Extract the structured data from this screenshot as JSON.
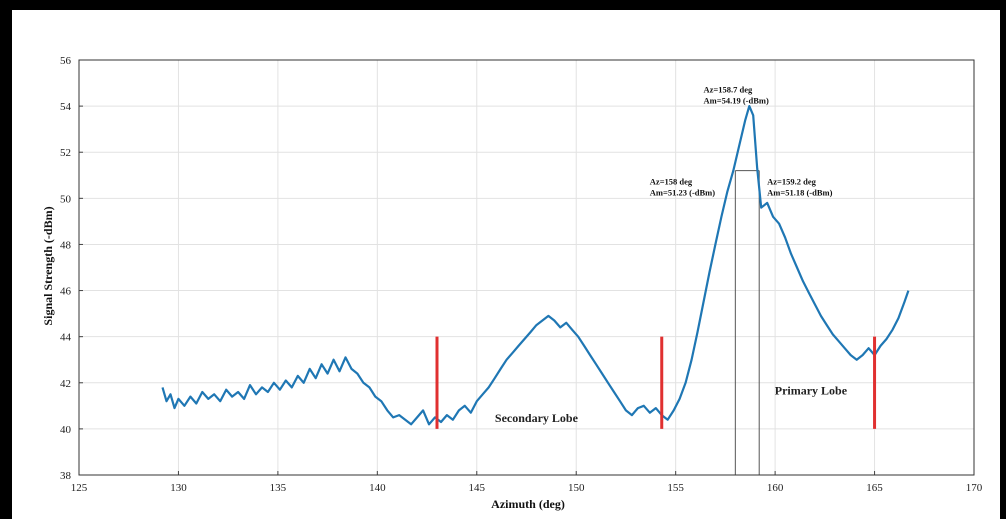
{
  "chart_data": {
    "type": "line",
    "title": "",
    "xlabel": "Azimuth (deg)",
    "ylabel": "Signal Strength (-dBm)",
    "xlim": [
      125,
      170
    ],
    "ylim": [
      38,
      56
    ],
    "x_ticks": [
      "125",
      "130",
      "135",
      "140",
      "145",
      "150",
      "155",
      "160",
      "165",
      "170"
    ],
    "y_ticks": [
      "38",
      "40",
      "42",
      "44",
      "46",
      "48",
      "50",
      "52",
      "54",
      "56"
    ],
    "grid": true,
    "series": [
      {
        "name": "",
        "color": "#1f77b4",
        "x": [
          129.2,
          129.4,
          129.6,
          129.8,
          130.0,
          130.3,
          130.6,
          130.9,
          131.2,
          131.5,
          131.8,
          132.1,
          132.4,
          132.7,
          133.0,
          133.3,
          133.6,
          133.9,
          134.2,
          134.5,
          134.8,
          135.1,
          135.4,
          135.7,
          136.0,
          136.3,
          136.6,
          136.9,
          137.2,
          137.5,
          137.8,
          138.1,
          138.4,
          138.7,
          139.0,
          139.3,
          139.6,
          139.9,
          140.2,
          140.5,
          140.8,
          141.1,
          141.4,
          141.7,
          142.0,
          142.3,
          142.6,
          142.9,
          143.2,
          143.5,
          143.8,
          144.1,
          144.4,
          144.7,
          145.0,
          145.3,
          145.6,
          145.9,
          146.2,
          146.5,
          146.8,
          147.1,
          147.4,
          147.7,
          148.0,
          148.3,
          148.6,
          148.9,
          149.2,
          149.5,
          149.8,
          150.1,
          150.4,
          150.7,
          151.0,
          151.3,
          151.6,
          151.9,
          152.2,
          152.5,
          152.8,
          153.1,
          153.4,
          153.7,
          154.0,
          154.3,
          154.6,
          154.9,
          155.2,
          155.5,
          155.8,
          156.1,
          156.4,
          156.7,
          157.0,
          157.3,
          157.6,
          157.9,
          158.2,
          158.5,
          158.7,
          158.9,
          159.1,
          159.3,
          159.6,
          159.9,
          160.2,
          160.5,
          160.8,
          161.1,
          161.4,
          161.7,
          162.0,
          162.3,
          162.6,
          162.9,
          163.2,
          163.5,
          163.8,
          164.1,
          164.4,
          164.7,
          165.0,
          165.3,
          165.6,
          165.9,
          166.2,
          166.5,
          166.7
        ],
        "y": [
          41.8,
          41.2,
          41.5,
          40.9,
          41.3,
          41.0,
          41.4,
          41.1,
          41.6,
          41.3,
          41.5,
          41.2,
          41.7,
          41.4,
          41.6,
          41.3,
          41.9,
          41.5,
          41.8,
          41.6,
          42.0,
          41.7,
          42.1,
          41.8,
          42.3,
          42.0,
          42.6,
          42.2,
          42.8,
          42.4,
          43.0,
          42.5,
          43.1,
          42.6,
          42.4,
          42.0,
          41.8,
          41.4,
          41.2,
          40.8,
          40.5,
          40.6,
          40.4,
          40.2,
          40.5,
          40.8,
          40.2,
          40.5,
          40.3,
          40.6,
          40.4,
          40.8,
          41.0,
          40.7,
          41.2,
          41.5,
          41.8,
          42.2,
          42.6,
          43.0,
          43.3,
          43.6,
          43.9,
          44.2,
          44.5,
          44.7,
          44.9,
          44.7,
          44.4,
          44.6,
          44.3,
          44.0,
          43.6,
          43.2,
          42.8,
          42.4,
          42.0,
          41.6,
          41.2,
          40.8,
          40.6,
          40.9,
          41.0,
          40.7,
          40.9,
          40.6,
          40.4,
          40.8,
          41.3,
          42.0,
          43.0,
          44.2,
          45.5,
          46.8,
          48.0,
          49.2,
          50.3,
          51.2,
          52.3,
          53.4,
          54.0,
          53.6,
          51.3,
          49.6,
          49.8,
          49.2,
          48.9,
          48.3,
          47.6,
          47.0,
          46.4,
          45.9,
          45.4,
          44.9,
          44.5,
          44.1,
          43.8,
          43.5,
          43.2,
          43.0,
          43.2,
          43.5,
          43.2,
          43.6,
          43.9,
          44.3,
          44.8,
          45.5,
          46.0
        ]
      }
    ],
    "markers": [
      {
        "x": 143.0,
        "y_from": 40.0,
        "y_to": 44.0,
        "color": "#e03030"
      },
      {
        "x": 154.3,
        "y_from": 40.0,
        "y_to": 44.0,
        "color": "#e03030"
      },
      {
        "x": 165.0,
        "y_from": 40.0,
        "y_to": 44.0,
        "color": "#e03030"
      }
    ],
    "reference_lines": [
      {
        "x": 158.0,
        "y_from": 38,
        "y_to": 51.2
      },
      {
        "x": 159.2,
        "y_from": 38,
        "y_to": 51.2
      }
    ],
    "annotations": [
      {
        "line1": "Az=158.7 deg",
        "line2": "Am=54.19 (-dBm)",
        "x": 156.4,
        "y": 54.6
      },
      {
        "line1": "Az=158 deg",
        "line2": "Am=51.23 (-dBm)",
        "x": 153.7,
        "y": 50.6
      },
      {
        "line1": "Az=159.2 deg",
        "line2": "Am=51.18 (-dBm)",
        "x": 159.6,
        "y": 50.6
      }
    ],
    "region_labels": [
      {
        "text": "Secondary Lobe",
        "x": 148.0,
        "y": 40.3
      },
      {
        "text": "Primary Lobe",
        "x": 161.8,
        "y": 41.5
      }
    ]
  }
}
